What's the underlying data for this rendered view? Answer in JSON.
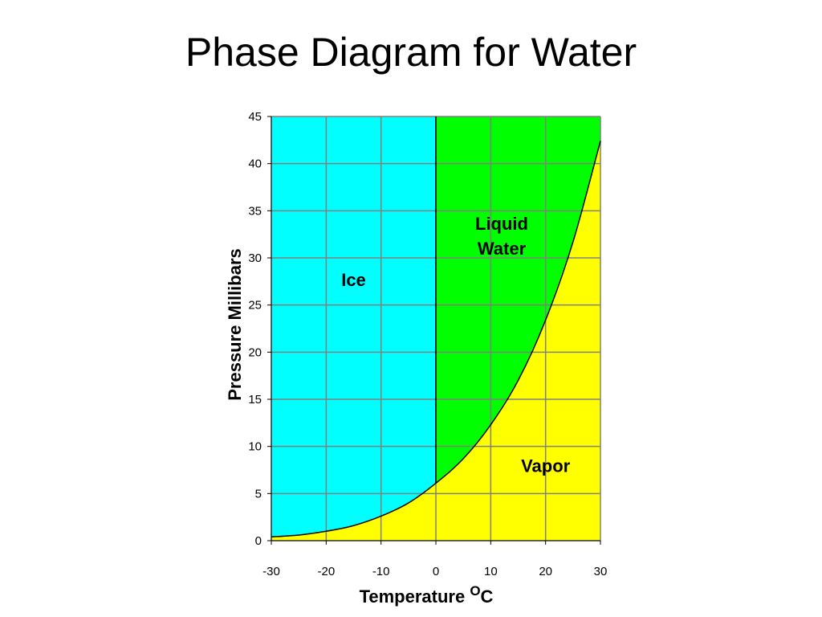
{
  "title": "Phase Diagram for Water",
  "chart_data": {
    "type": "area",
    "xlabel": "Temperature",
    "xlabel_unit": "C",
    "xlabel_unit_super": "O",
    "ylabel": "Pressure Millibars",
    "xlim": [
      -30,
      30
    ],
    "ylim": [
      0,
      45
    ],
    "xticks": [
      "-30",
      "-20",
      "-10",
      "0",
      "10",
      "20",
      "30"
    ],
    "yticks": [
      "0",
      "5",
      "10",
      "15",
      "20",
      "25",
      "30",
      "35",
      "40",
      "45"
    ],
    "grid": true,
    "colors": {
      "ice": "#00ffff",
      "liquid": "#00ff00",
      "vapor": "#ffff00",
      "grid": "#808080",
      "line": "#000000"
    },
    "regions": [
      {
        "label": "Ice",
        "lines": [
          "Ice"
        ],
        "anchor": [
          -15,
          27
        ]
      },
      {
        "label": "Liquid Water",
        "lines": [
          "Liquid",
          "Water"
        ],
        "anchor": [
          12,
          33
        ]
      },
      {
        "label": "Vapor",
        "lines": [
          "Vapor"
        ],
        "anchor": [
          20,
          7.3
        ]
      }
    ],
    "phase_boundary_x": 0,
    "vapor_curve": {
      "x": [
        -30,
        -25,
        -20,
        -15,
        -10,
        -5,
        0,
        5,
        10,
        15,
        20,
        25,
        30
      ],
      "y": [
        0.4,
        0.6,
        1.0,
        1.6,
        2.6,
        4.0,
        6.1,
        8.7,
        12.3,
        17.0,
        23.4,
        31.7,
        42.4
      ]
    }
  }
}
